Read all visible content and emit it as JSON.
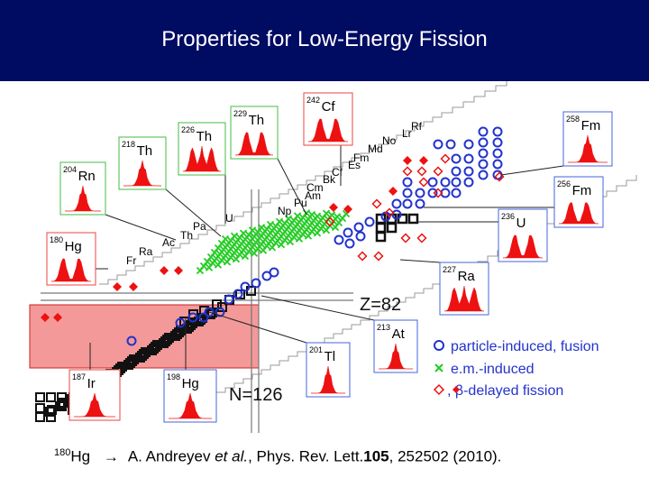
{
  "slide": {
    "title": "Properties for Low-Energy Fission"
  },
  "colors": {
    "title_bar": "#000b62",
    "fission_red": "#ee1111",
    "particle_blue": "#2233cc",
    "em_green": "#22cc22",
    "highlight_box": "#f08080",
    "stable_black": "#111111"
  },
  "chart": {
    "magic": {
      "z": "Z=82",
      "n": "N=126"
    },
    "legend": [
      {
        "icon": "circle-icon",
        "label": "particle-induced, fusion",
        "color": "#2233cc"
      },
      {
        "icon": "cross-icon",
        "label": "e.m.-induced",
        "color": "#22cc22"
      },
      {
        "icon": "diamond-icon",
        "label": ",  β-delayed fission",
        "color": "#ee1111"
      }
    ],
    "element_labels": [
      {
        "el": "Fr"
      },
      {
        "el": "Ra"
      },
      {
        "el": "Ac"
      },
      {
        "el": "Th"
      },
      {
        "el": "Pa"
      },
      {
        "el": "U"
      },
      {
        "el": "Np"
      },
      {
        "el": "Pu"
      },
      {
        "el": "Am"
      },
      {
        "el": "Cm"
      },
      {
        "el": "Bk"
      },
      {
        "el": "Cf"
      },
      {
        "el": "Es"
      },
      {
        "el": "Fm"
      },
      {
        "el": "Md"
      },
      {
        "el": "No"
      },
      {
        "el": "Lr"
      },
      {
        "el": "Rf"
      }
    ],
    "insets": [
      {
        "a": "204",
        "el": "Rn",
        "shape": "single",
        "border": "green"
      },
      {
        "a": "218",
        "el": "Th",
        "shape": "single",
        "border": "green"
      },
      {
        "a": "226",
        "el": "Th",
        "shape": "triple",
        "border": "green"
      },
      {
        "a": "229",
        "el": "Th",
        "shape": "double",
        "border": "green"
      },
      {
        "a": "242",
        "el": "Cf",
        "shape": "double",
        "border": "red"
      },
      {
        "a": "258",
        "el": "Fm",
        "shape": "single",
        "border": "blue"
      },
      {
        "a": "256",
        "el": "Fm",
        "shape": "double",
        "border": "blue"
      },
      {
        "a": "236",
        "el": "U",
        "shape": "double",
        "border": "blue"
      },
      {
        "a": "180",
        "el": "Hg",
        "shape": "double",
        "border": "red"
      },
      {
        "a": "227",
        "el": "Ra",
        "shape": "triple",
        "border": "blue"
      },
      {
        "a": "213",
        "el": "At",
        "shape": "single",
        "border": "blue"
      },
      {
        "a": "201",
        "el": "Tl",
        "shape": "single",
        "border": "blue"
      },
      {
        "a": "187",
        "el": "Ir",
        "shape": "single",
        "border": "red"
      },
      {
        "a": "198",
        "el": "Hg",
        "shape": "single",
        "border": "blue"
      }
    ]
  },
  "footer": {
    "superscript": "180",
    "nucleus": "Hg",
    "arrow": "→",
    "authors": "A. Andreyev ",
    "etal": "et al.",
    "journal": ", Phys. Rev. Lett.",
    "volume": "105",
    "pages": ", 252502 (2010)."
  }
}
